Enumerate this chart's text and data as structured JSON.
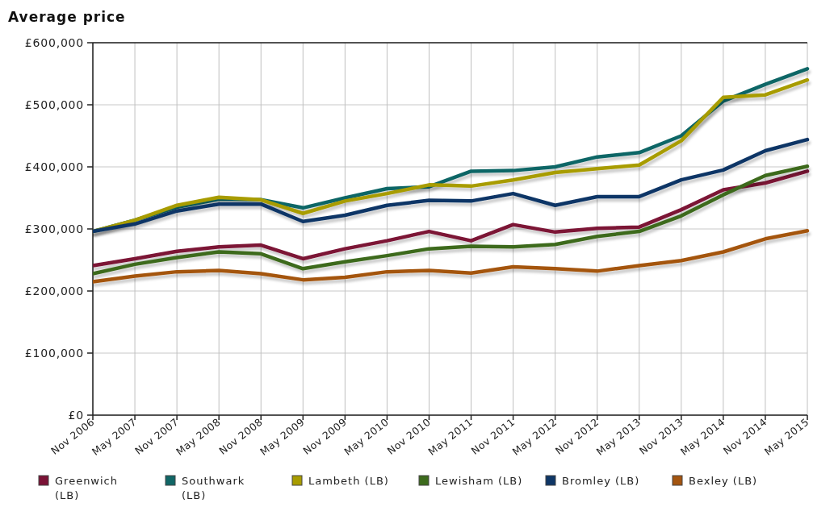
{
  "chart_data": {
    "type": "line",
    "title": "Average price",
    "categories": [
      "Nov 2006",
      "May 2007",
      "Nov 2007",
      "May 2008",
      "Nov 2008",
      "May 2009",
      "Nov 2009",
      "May 2010",
      "Nov 2010",
      "May 2011",
      "Nov 2011",
      "May 2012",
      "Nov 2012",
      "May 2013",
      "Nov 2013",
      "May 2014",
      "Nov 2014",
      "May 2015"
    ],
    "series": [
      {
        "name": "Greenwich (LB)",
        "color": "#7b1236",
        "values": [
          241000,
          252000,
          264000,
          271000,
          274000,
          252000,
          268000,
          281000,
          296000,
          281000,
          307000,
          295000,
          301000,
          303000,
          331000,
          363000,
          374000,
          393000
        ]
      },
      {
        "name": "Southwark (LB)",
        "color": "#106666",
        "values": [
          296000,
          314000,
          335000,
          348000,
          347000,
          334000,
          350000,
          365000,
          368000,
          393000,
          394000,
          400000,
          416000,
          423000,
          450000,
          506000,
          533000,
          558000
        ]
      },
      {
        "name": "Lambeth (LB)",
        "color": "#a89c00",
        "values": [
          296000,
          314000,
          338000,
          351000,
          347000,
          325000,
          345000,
          357000,
          371000,
          369000,
          379000,
          391000,
          397000,
          403000,
          442000,
          512000,
          516000,
          540000
        ]
      },
      {
        "name": "Lewisham (LB)",
        "color": "#3d6b1d",
        "values": [
          228000,
          243000,
          254000,
          263000,
          260000,
          236000,
          247000,
          257000,
          268000,
          272000,
          271000,
          275000,
          288000,
          296000,
          321000,
          355000,
          386000,
          401000
        ]
      },
      {
        "name": "Bromley (LB)",
        "color": "#0e3666",
        "values": [
          296000,
          308000,
          329000,
          340000,
          340000,
          312000,
          322000,
          338000,
          346000,
          345000,
          357000,
          338000,
          352000,
          352000,
          379000,
          395000,
          426000,
          444000
        ]
      },
      {
        "name": "Bexley (LB)",
        "color": "#a4550f",
        "values": [
          215000,
          224000,
          231000,
          233000,
          228000,
          218000,
          222000,
          231000,
          233000,
          229000,
          239000,
          236000,
          232000,
          241000,
          249000,
          263000,
          284000,
          297000
        ]
      }
    ],
    "ylim": [
      0,
      600000
    ],
    "yticks": [
      {
        "value": 0,
        "label": "£0"
      },
      {
        "value": 100000,
        "label": "£100,000"
      },
      {
        "value": 200000,
        "label": "£200,000"
      },
      {
        "value": 300000,
        "label": "£300,000"
      },
      {
        "value": 400000,
        "label": "£400,000"
      },
      {
        "value": 500000,
        "label": "£500,000"
      },
      {
        "value": 600000,
        "label": "£600,000"
      }
    ],
    "grid": true,
    "legend": "bottom",
    "line_style": "solid"
  }
}
